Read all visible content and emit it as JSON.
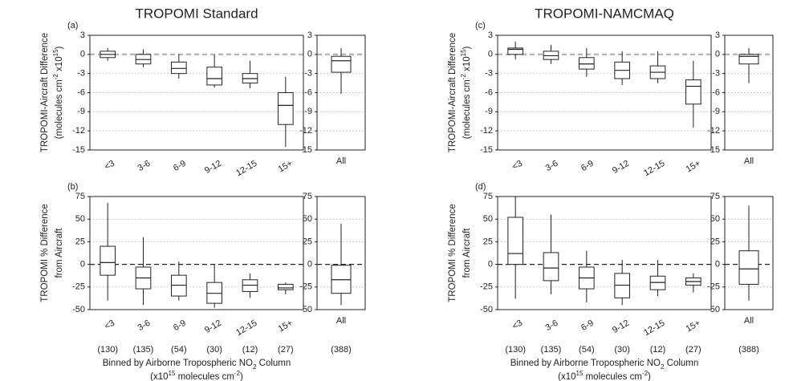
{
  "chart_data": [
    {
      "type": "box",
      "panel_label": "(a)",
      "title": "TROPOMI Standard",
      "ylabel": [
        [
          "TROPOMI-Aircraft Difference"
        ],
        [
          "(molecules cm",
          "-2",
          " x10",
          "15",
          ")"
        ]
      ],
      "categories": [
        "<3",
        "3-6",
        "6-9",
        "9-12",
        "12-15",
        "15+"
      ],
      "boxes": [
        {
          "min": -1,
          "q1": -0.5,
          "median": 0,
          "q3": 0.5,
          "max": 1
        },
        {
          "min": -2,
          "q1": -1.5,
          "median": -0.8,
          "q3": 0,
          "max": 0.8
        },
        {
          "min": -3.8,
          "q1": -3,
          "median": -2.2,
          "q3": -1.2,
          "max": 0
        },
        {
          "min": -5.2,
          "q1": -4.8,
          "median": -3.8,
          "q3": -2,
          "max": 0
        },
        {
          "min": -5.3,
          "q1": -4.5,
          "median": -3.8,
          "q3": -3,
          "max": -1
        },
        {
          "min": -14.5,
          "q1": -11,
          "median": -8,
          "q3": -6,
          "max": -3.5
        }
      ],
      "all_category": "All",
      "all_box": {
        "min": -6.2,
        "q1": -2.8,
        "median": -1,
        "q3": -0.3,
        "max": 1
      },
      "ylim": [
        -15,
        3
      ],
      "yticks": [
        -15,
        -12,
        -9,
        -6,
        -3,
        0,
        3
      ],
      "grid": true,
      "zero_line_color": "#b0b0b0",
      "color": "#222"
    },
    {
      "type": "box",
      "panel_label": "(b)",
      "ylabel": [
        [
          "TROPOMI % Difference"
        ],
        [
          "from Aircraft"
        ]
      ],
      "categories": [
        "<3",
        "3-6",
        "6-9",
        "9-12",
        "12-15",
        "15+"
      ],
      "boxes": [
        {
          "min": -40,
          "q1": -12,
          "median": 2,
          "q3": 20,
          "max": 68
        },
        {
          "min": -45,
          "q1": -27,
          "median": -15,
          "q3": -3,
          "max": 30
        },
        {
          "min": -40,
          "q1": -35,
          "median": -23,
          "q3": -12,
          "max": 3
        },
        {
          "min": -48,
          "q1": -43,
          "median": -32,
          "q3": -20,
          "max": 0
        },
        {
          "min": -37,
          "q1": -30,
          "median": -23,
          "q3": -17,
          "max": -10
        },
        {
          "min": -33,
          "q1": -28,
          "median": -26,
          "q3": -22,
          "max": -20
        }
      ],
      "counts": [
        "(130)",
        "(135)",
        "(54)",
        "(30)",
        "(12)",
        "(27)"
      ],
      "all_category": "All",
      "all_box": {
        "min": -45,
        "q1": -32,
        "median": -17,
        "q3": -1,
        "max": 45
      },
      "all_count": "(388)",
      "xlabel": [
        "Binned by Airborne Tropospheric NO",
        "2",
        " Column"
      ],
      "xunit": [
        "(x10",
        "15",
        " molecules cm",
        "-2",
        ")"
      ],
      "ylim": [
        -50,
        75
      ],
      "yticks": [
        -50,
        -25,
        0,
        25,
        50,
        75
      ],
      "grid": true,
      "zero_line_color": "#222",
      "color": "#222"
    },
    {
      "type": "box",
      "panel_label": "(c)",
      "title": "TROPOMI-NAMCMAQ",
      "ylabel": [
        [
          "TROPOMI-Aircraft Difference"
        ],
        [
          "(molecules cm",
          "-2",
          " x10",
          "15",
          ")"
        ]
      ],
      "categories": [
        "<3",
        "3-6",
        "6-9",
        "9-12",
        "12-15",
        "15+"
      ],
      "boxes": [
        {
          "min": -0.8,
          "q1": 0,
          "median": 0.8,
          "q3": 1,
          "max": 2
        },
        {
          "min": -1.5,
          "q1": -0.8,
          "median": -0.2,
          "q3": 0.5,
          "max": 1.5
        },
        {
          "min": -3.5,
          "q1": -2.3,
          "median": -1.5,
          "q3": -0.5,
          "max": 1
        },
        {
          "min": -4.8,
          "q1": -3.8,
          "median": -2.5,
          "q3": -1.2,
          "max": 0.5
        },
        {
          "min": -4.5,
          "q1": -3.8,
          "median": -2.8,
          "q3": -1.8,
          "max": 0.5
        },
        {
          "min": -11.5,
          "q1": -7.8,
          "median": -5,
          "q3": -4,
          "max": -1
        }
      ],
      "all_category": "All",
      "all_box": {
        "min": -4.5,
        "q1": -1.5,
        "median": -0.3,
        "q3": 0,
        "max": 1
      },
      "ylim": [
        -15,
        3
      ],
      "yticks": [
        -15,
        -12,
        -9,
        -6,
        -3,
        0,
        3
      ],
      "grid": true,
      "zero_line_color": "#b0b0b0",
      "color": "#222"
    },
    {
      "type": "box",
      "panel_label": "(d)",
      "ylabel": [
        [
          "TROPOMI % Difference"
        ],
        [
          "from Aircraft"
        ]
      ],
      "categories": [
        "<3",
        "3-6",
        "6-9",
        "9-12",
        "12-15",
        "15+"
      ],
      "boxes": [
        {
          "min": -38,
          "q1": 0,
          "median": 12,
          "q3": 52,
          "max": 75
        },
        {
          "min": -33,
          "q1": -18,
          "median": -4,
          "q3": 13,
          "max": 55
        },
        {
          "min": -42,
          "q1": -27,
          "median": -15,
          "q3": -3,
          "max": 15
        },
        {
          "min": -45,
          "q1": -37,
          "median": -23,
          "q3": -10,
          "max": 5
        },
        {
          "min": -35,
          "q1": -28,
          "median": -20,
          "q3": -13,
          "max": 5
        },
        {
          "min": -31,
          "q1": -23,
          "median": -19,
          "q3": -15,
          "max": -10
        }
      ],
      "counts": [
        "(130)",
        "(135)",
        "(54)",
        "(30)",
        "(12)",
        "(27)"
      ],
      "all_category": "All",
      "all_box": {
        "min": -40,
        "q1": -22,
        "median": -5,
        "q3": 15,
        "max": 65
      },
      "all_count": "(388)",
      "xlabel": [
        "Binned by Airborne Tropospheric NO",
        "2",
        " Column"
      ],
      "xunit": [
        "(x10",
        "15",
        " molecules cm",
        "-2",
        ")"
      ],
      "ylim": [
        -50,
        75
      ],
      "yticks": [
        -50,
        -25,
        0,
        25,
        50,
        75
      ],
      "grid": true,
      "zero_line_color": "#222",
      "color": "#222"
    }
  ]
}
